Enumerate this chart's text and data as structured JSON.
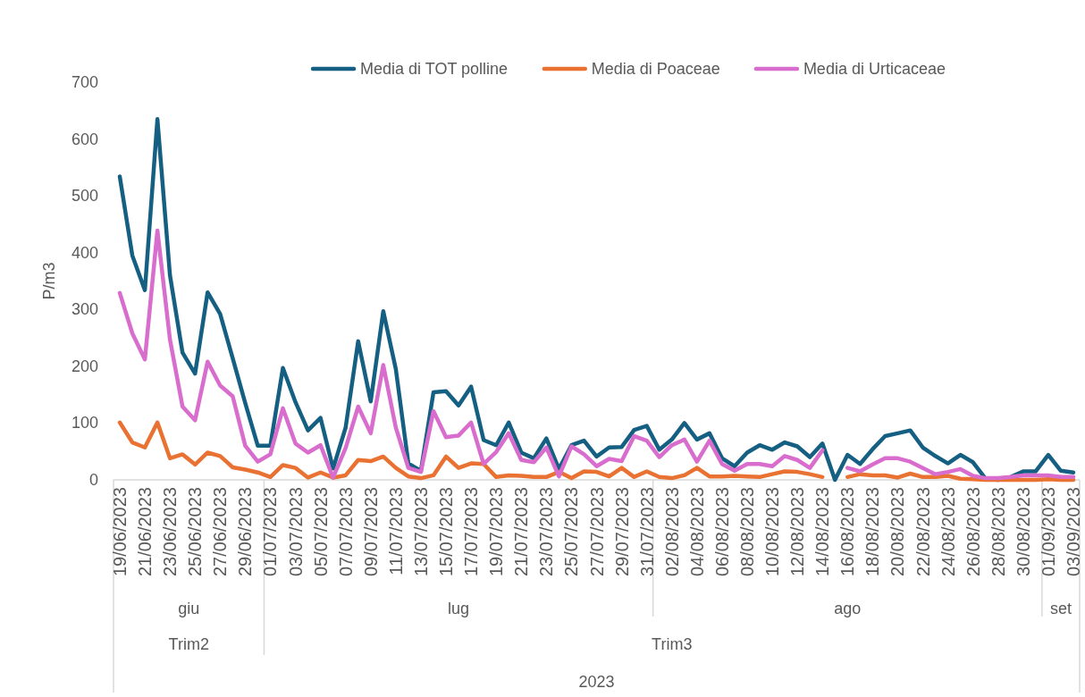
{
  "chart_data": {
    "type": "line",
    "ylabel": "P/m3",
    "legend": "top",
    "annotations": [
      "giu",
      "lug",
      "ago",
      "set",
      "Trim2",
      "Trim3",
      "2023"
    ],
    "x": [
      "2023-06-19",
      "2023-06-20",
      "2023-06-21",
      "2023-06-22",
      "2023-06-23",
      "2023-06-24",
      "2023-06-25",
      "2023-06-26",
      "2023-06-27",
      "2023-06-28",
      "2023-06-29",
      "2023-06-30",
      "2023-07-01",
      "2023-07-02",
      "2023-07-03",
      "2023-07-04",
      "2023-07-05",
      "2023-07-06",
      "2023-07-07",
      "2023-07-08",
      "2023-07-09",
      "2023-07-10",
      "2023-07-11",
      "2023-07-12",
      "2023-07-13",
      "2023-07-14",
      "2023-07-15",
      "2023-07-16",
      "2023-07-17",
      "2023-07-18",
      "2023-07-19",
      "2023-07-20",
      "2023-07-21",
      "2023-07-22",
      "2023-07-23",
      "2023-07-24",
      "2023-07-25",
      "2023-07-26",
      "2023-07-27",
      "2023-07-28",
      "2023-07-29",
      "2023-07-30",
      "2023-07-31",
      "2023-08-01",
      "2023-08-02",
      "2023-08-03",
      "2023-08-04",
      "2023-08-05",
      "2023-08-06",
      "2023-08-07",
      "2023-08-08",
      "2023-08-09",
      "2023-08-10",
      "2023-08-11",
      "2023-08-12",
      "2023-08-13",
      "2023-08-14",
      "2023-08-15",
      "2023-08-16",
      "2023-08-17",
      "2023-08-18",
      "2023-08-19",
      "2023-08-20",
      "2023-08-21",
      "2023-08-22",
      "2023-08-23",
      "2023-08-24",
      "2023-08-25",
      "2023-08-26",
      "2023-08-27",
      "2023-08-28",
      "2023-08-29",
      "2023-08-30",
      "2023-08-31",
      "2023-09-01",
      "2023-09-02",
      "2023-09-03"
    ],
    "xlim": [
      "2023-06-18T12:00",
      "2023-09-03T12:00"
    ],
    "xticks": [
      {
        "value": "2023-06-19",
        "label": "19/06/2023"
      },
      {
        "value": "2023-06-21",
        "label": "21/06/2023"
      },
      {
        "value": "2023-06-23",
        "label": "23/06/2023"
      },
      {
        "value": "2023-06-25",
        "label": "25/06/2023"
      },
      {
        "value": "2023-06-27",
        "label": "27/06/2023"
      },
      {
        "value": "2023-06-29",
        "label": "29/06/2023"
      },
      {
        "value": "2023-07-01",
        "label": "01/07/2023"
      },
      {
        "value": "2023-07-03",
        "label": "03/07/2023"
      },
      {
        "value": "2023-07-05",
        "label": "05/07/2023"
      },
      {
        "value": "2023-07-07",
        "label": "07/07/2023"
      },
      {
        "value": "2023-07-09",
        "label": "09/07/2023"
      },
      {
        "value": "2023-07-11",
        "label": "11/07/2023"
      },
      {
        "value": "2023-07-13",
        "label": "13/07/2023"
      },
      {
        "value": "2023-07-15",
        "label": "15/07/2023"
      },
      {
        "value": "2023-07-17",
        "label": "17/07/2023"
      },
      {
        "value": "2023-07-19",
        "label": "19/07/2023"
      },
      {
        "value": "2023-07-21",
        "label": "21/07/2023"
      },
      {
        "value": "2023-07-23",
        "label": "23/07/2023"
      },
      {
        "value": "2023-07-25",
        "label": "25/07/2023"
      },
      {
        "value": "2023-07-27",
        "label": "27/07/2023"
      },
      {
        "value": "2023-07-29",
        "label": "29/07/2023"
      },
      {
        "value": "2023-07-31",
        "label": "31/07/2023"
      },
      {
        "value": "2023-08-02",
        "label": "02/08/2023"
      },
      {
        "value": "2023-08-04",
        "label": "04/08/2023"
      },
      {
        "value": "2023-08-06",
        "label": "06/08/2023"
      },
      {
        "value": "2023-08-08",
        "label": "08/08/2023"
      },
      {
        "value": "2023-08-10",
        "label": "10/08/2023"
      },
      {
        "value": "2023-08-12",
        "label": "12/08/2023"
      },
      {
        "value": "2023-08-14",
        "label": "14/08/2023"
      },
      {
        "value": "2023-08-16",
        "label": "16/08/2023"
      },
      {
        "value": "2023-08-18",
        "label": "18/08/2023"
      },
      {
        "value": "2023-08-20",
        "label": "20/08/2023"
      },
      {
        "value": "2023-08-22",
        "label": "22/08/2023"
      },
      {
        "value": "2023-08-24",
        "label": "24/08/2023"
      },
      {
        "value": "2023-08-26",
        "label": "26/08/2023"
      },
      {
        "value": "2023-08-28",
        "label": "28/08/2023"
      },
      {
        "value": "2023-08-30",
        "label": "30/08/2023"
      },
      {
        "value": "2023-09-01",
        "label": "01/09/2023"
      },
      {
        "value": "2023-09-03",
        "label": "03/09/2023"
      }
    ],
    "ylim": [
      0,
      700
    ],
    "yticks": [
      0,
      100,
      200,
      300,
      400,
      500,
      600,
      700
    ],
    "series": [
      {
        "name": "Media di TOT polline",
        "color": "#156082",
        "values": [
          534,
          395,
          334,
          635,
          360,
          224,
          187,
          330,
          292,
          214,
          135,
          60,
          60,
          197,
          137,
          87,
          109,
          20,
          92,
          244,
          138,
          297,
          195,
          29,
          16,
          154,
          156,
          131,
          164,
          70,
          61,
          101,
          48,
          38,
          73,
          19,
          61,
          69,
          41,
          57,
          58,
          88,
          95,
          53,
          71,
          100,
          71,
          82,
          38,
          24,
          48,
          61,
          53,
          66,
          59,
          40,
          64,
          0,
          44,
          28,
          54,
          77,
          82,
          87,
          57,
          42,
          29,
          44,
          31,
          2,
          0,
          5,
          15,
          15,
          44,
          16,
          13
        ]
      },
      {
        "name": "Media di Poaceae",
        "color": "#e97132",
        "values": [
          101,
          66,
          57,
          101,
          38,
          45,
          27,
          48,
          42,
          22,
          18,
          13,
          5,
          26,
          21,
          4,
          13,
          4,
          8,
          35,
          33,
          41,
          21,
          6,
          3,
          8,
          41,
          21,
          29,
          28,
          5,
          8,
          7,
          5,
          5,
          14,
          3,
          15,
          14,
          6,
          21,
          5,
          15,
          5,
          3,
          8,
          21,
          6,
          6,
          7,
          6,
          5,
          10,
          15,
          14,
          10,
          5,
          null,
          5,
          10,
          8,
          8,
          4,
          11,
          5,
          5,
          7,
          2,
          1,
          0,
          0,
          0,
          0,
          0,
          1,
          0,
          0
        ]
      },
      {
        "name": "Media di Urticaceae",
        "color": "#d86dcd",
        "values": [
          329,
          258,
          212,
          439,
          247,
          129,
          105,
          208,
          166,
          147,
          60,
          32,
          45,
          126,
          64,
          48,
          61,
          4,
          56,
          129,
          82,
          202,
          92,
          21,
          14,
          121,
          75,
          78,
          101,
          28,
          49,
          82,
          35,
          31,
          57,
          6,
          59,
          45,
          24,
          37,
          33,
          77,
          69,
          40,
          61,
          71,
          32,
          69,
          28,
          16,
          28,
          28,
          24,
          42,
          35,
          21,
          52,
          null,
          21,
          15,
          27,
          38,
          38,
          32,
          21,
          10,
          14,
          19,
          7,
          3,
          3,
          5,
          8,
          8,
          8,
          5,
          5
        ]
      }
    ]
  }
}
